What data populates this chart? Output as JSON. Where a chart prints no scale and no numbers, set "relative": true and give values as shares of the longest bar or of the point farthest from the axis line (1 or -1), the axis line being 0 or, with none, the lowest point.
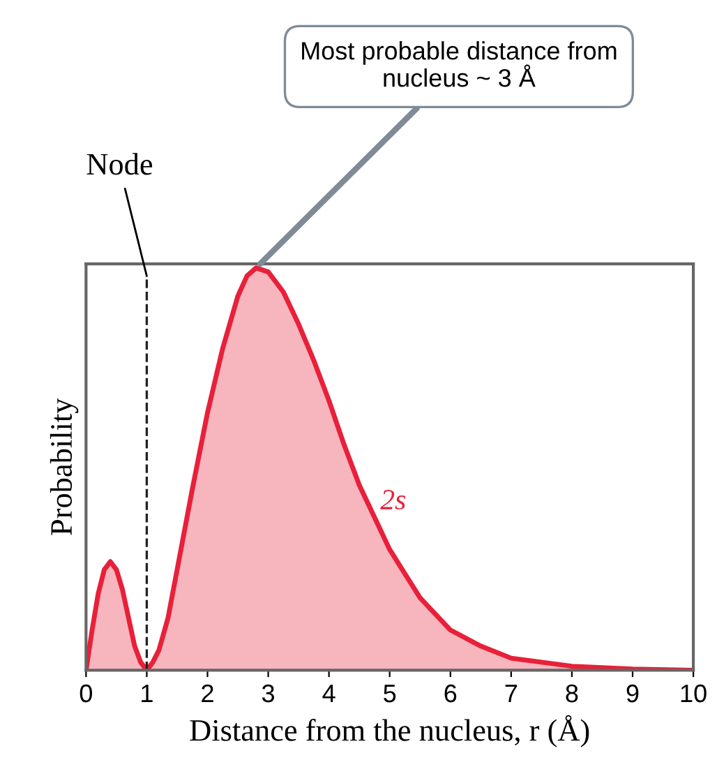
{
  "chart_data": {
    "type": "area",
    "relative": true,
    "xlabel": "Distance from the nucleus, r (Å)",
    "ylabel": "Probability",
    "xlim": [
      0,
      10
    ],
    "xticks": [
      0,
      1,
      2,
      3,
      4,
      5,
      6,
      7,
      8,
      9,
      10
    ],
    "grid": false,
    "series": [
      {
        "name": "2s",
        "color": "#e8203a",
        "x": [
          0,
          0.1,
          0.2,
          0.3,
          0.4,
          0.5,
          0.6,
          0.7,
          0.8,
          0.9,
          1.0,
          1.1,
          1.2,
          1.35,
          1.5,
          1.75,
          2.0,
          2.25,
          2.5,
          2.65,
          2.8,
          3.0,
          3.25,
          3.5,
          3.75,
          4.0,
          4.25,
          4.5,
          4.75,
          5.0,
          5.25,
          5.5,
          6.0,
          6.5,
          7.0,
          7.5,
          8.0,
          9.0,
          10.0
        ],
        "values": [
          0,
          0.1,
          0.19,
          0.25,
          0.27,
          0.25,
          0.2,
          0.13,
          0.06,
          0.02,
          0,
          0.02,
          0.05,
          0.13,
          0.25,
          0.45,
          0.64,
          0.8,
          0.93,
          0.98,
          1.0,
          0.99,
          0.94,
          0.86,
          0.77,
          0.67,
          0.56,
          0.46,
          0.38,
          0.3,
          0.24,
          0.18,
          0.1,
          0.06,
          0.03,
          0.02,
          0.01,
          0.003,
          0
        ]
      }
    ],
    "ref_lines": [
      {
        "axis": "x",
        "value": 1,
        "label": "Node",
        "line_style": "dashed",
        "color": "#222222"
      }
    ],
    "annotations": [
      {
        "text": "Most probable distance from\nnucleus ~ 3 Å",
        "x": 2.8,
        "y": 1.0
      }
    ]
  }
}
